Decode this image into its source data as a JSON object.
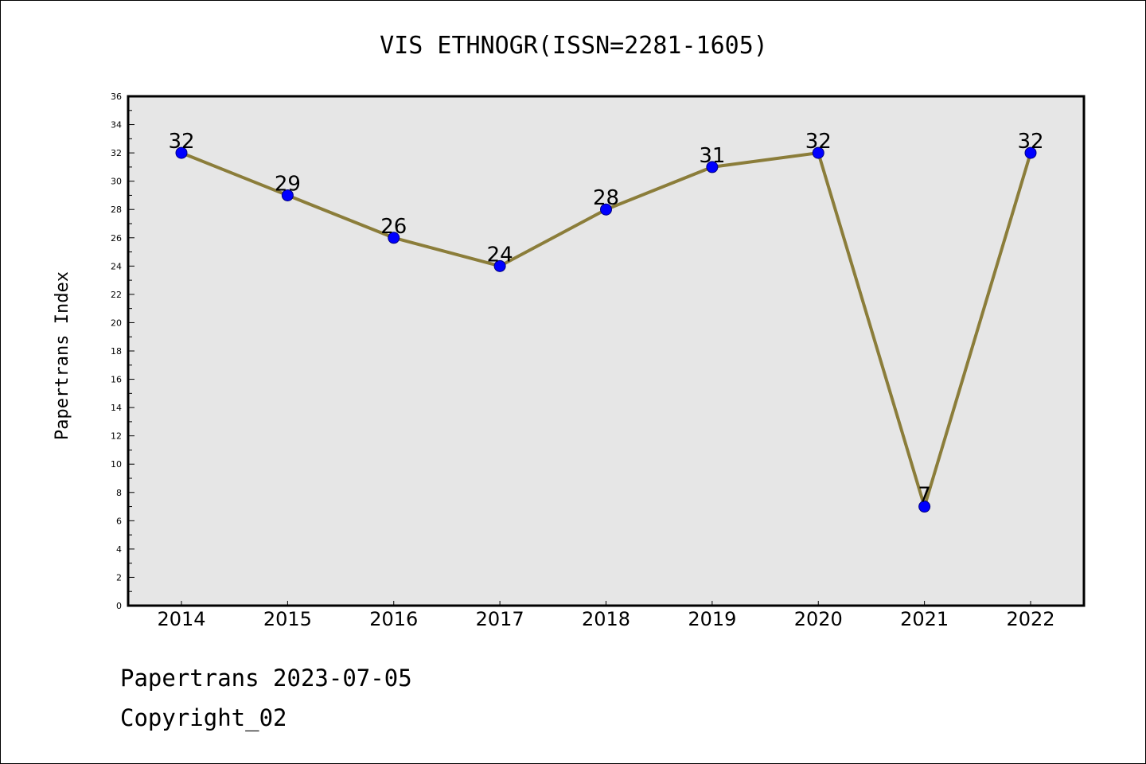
{
  "chart_data": {
    "type": "line",
    "title": "VIS ETHNOGR(ISSN=2281-1605)",
    "xlabel": "",
    "ylabel": "Papertrans Index",
    "categories": [
      "2014",
      "2015",
      "2016",
      "2017",
      "2018",
      "2019",
      "2020",
      "2021",
      "2022"
    ],
    "series": [
      {
        "values": [
          32,
          29,
          26,
          24,
          28,
          31,
          32,
          7,
          32
        ]
      }
    ],
    "data_labels": [
      "32",
      "29",
      "26",
      "24",
      "28",
      "31",
      "32",
      "7",
      "32"
    ],
    "ylim": [
      0,
      36
    ],
    "yticks": [
      "0",
      "2",
      "4",
      "6",
      "8",
      "10",
      "12",
      "14",
      "16",
      "18",
      "20",
      "22",
      "24",
      "26",
      "28",
      "30",
      "32",
      "34",
      "36"
    ],
    "grid": false,
    "legend": "none",
    "colors": {
      "line": "#8b7d3a",
      "marker_fill": "#0000ff",
      "marker_edge": "#000080",
      "plot_background": "#e6e6e6"
    }
  },
  "footer": {
    "line1": "Papertrans 2023-07-05",
    "line2": "Copyright_02"
  }
}
